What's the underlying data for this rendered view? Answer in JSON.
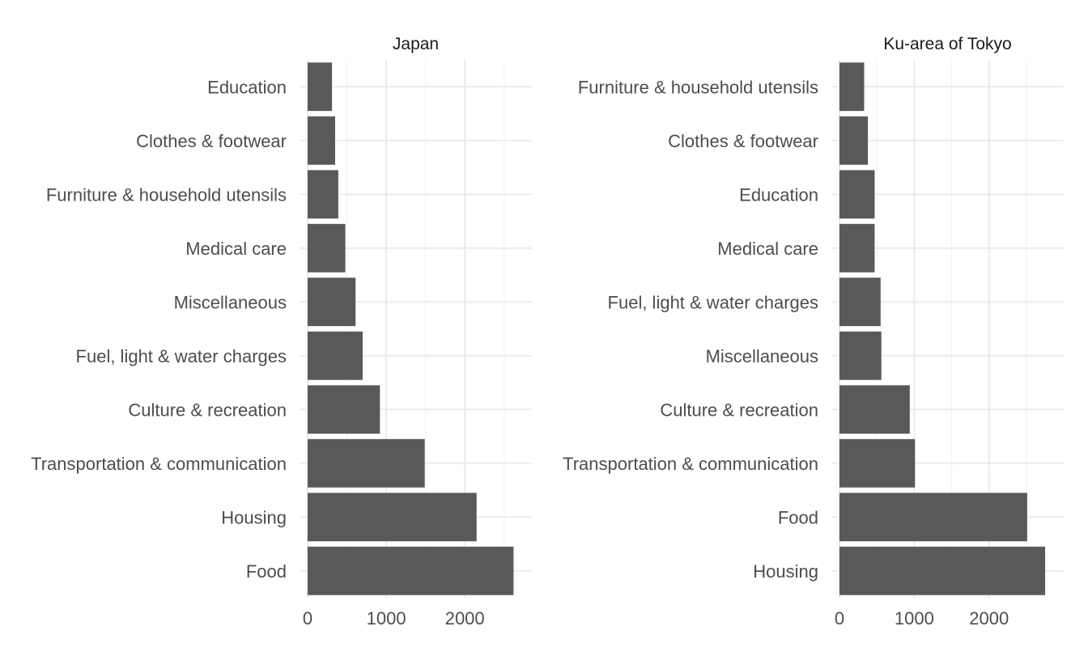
{
  "chart_data": [
    {
      "type": "bar",
      "orientation": "horizontal",
      "title": "Japan",
      "categories": [
        "Food",
        "Housing",
        "Transportation & communication",
        "Culture & recreation",
        "Fuel, light & water charges",
        "Miscellaneous",
        "Medical care",
        "Furniture & household utensils",
        "Clothes & footwear",
        "Education"
      ],
      "values": [
        2620,
        2150,
        1490,
        920,
        700,
        610,
        480,
        390,
        350,
        310
      ],
      "xlim": [
        0,
        2750
      ],
      "xticks": [
        0,
        1000,
        2000
      ],
      "xtick_labels": [
        "0",
        "1000",
        "2000"
      ],
      "bar_color": "#595959",
      "grid": true
    },
    {
      "type": "bar",
      "orientation": "horizontal",
      "title": "Ku-area of Tokyo",
      "categories": [
        "Housing",
        "Food",
        "Transportation & communication",
        "Culture & recreation",
        "Miscellaneous",
        "Fuel, light & water charges",
        "Medical care",
        "Education",
        "Clothes & footwear",
        "Furniture & household utensils"
      ],
      "values": [
        2750,
        2510,
        1010,
        940,
        560,
        550,
        470,
        470,
        380,
        330
      ],
      "xlim": [
        0,
        2890
      ],
      "xticks": [
        0,
        1000,
        2000
      ],
      "xtick_labels": [
        "0",
        "1000",
        "2000"
      ],
      "bar_color": "#595959",
      "grid": true
    }
  ]
}
